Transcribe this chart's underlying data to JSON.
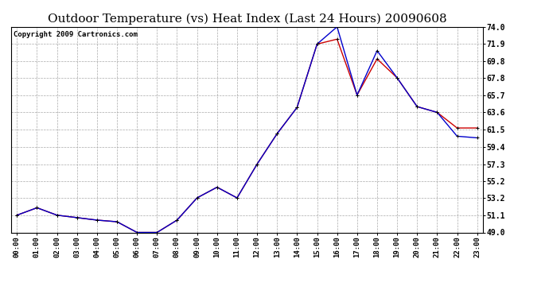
{
  "title": "Outdoor Temperature (vs) Heat Index (Last 24 Hours) 20090608",
  "copyright": "Copyright 2009 Cartronics.com",
  "hours": [
    "00:00",
    "01:00",
    "02:00",
    "03:00",
    "04:00",
    "05:00",
    "06:00",
    "07:00",
    "08:00",
    "09:00",
    "10:00",
    "11:00",
    "12:00",
    "13:00",
    "14:00",
    "15:00",
    "16:00",
    "17:00",
    "18:00",
    "19:00",
    "20:00",
    "21:00",
    "22:00",
    "23:00"
  ],
  "temp": [
    51.1,
    52.0,
    51.1,
    50.8,
    50.5,
    50.3,
    49.0,
    49.0,
    50.5,
    53.2,
    54.5,
    53.2,
    57.3,
    61.0,
    64.2,
    71.9,
    72.5,
    65.7,
    70.1,
    67.8,
    64.3,
    63.6,
    61.7,
    61.7
  ],
  "heat_index": [
    51.1,
    52.0,
    51.1,
    50.8,
    50.5,
    50.3,
    49.0,
    49.0,
    50.5,
    53.2,
    54.5,
    53.2,
    57.3,
    61.0,
    64.2,
    71.9,
    74.0,
    65.7,
    71.1,
    67.8,
    64.3,
    63.6,
    60.7,
    60.5
  ],
  "ylim": [
    49.0,
    74.0
  ],
  "yticks": [
    49.0,
    51.1,
    53.2,
    55.2,
    57.3,
    59.4,
    61.5,
    63.6,
    65.7,
    67.8,
    69.8,
    71.9,
    74.0
  ],
  "temp_color": "#cc0000",
  "heat_index_color": "#0000cc",
  "grid_color": "#aaaaaa",
  "bg_color": "#ffffff",
  "title_fontsize": 11,
  "copyright_fontsize": 6.5
}
